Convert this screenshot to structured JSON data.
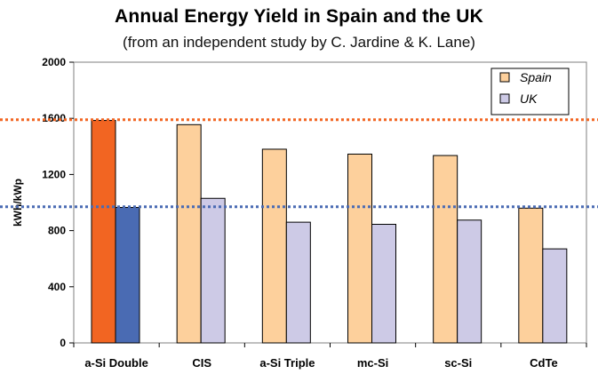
{
  "chart_data": {
    "type": "bar",
    "title": "Annual Energy Yield in Spain and the UK",
    "subtitle": "(from an independent  study by C. Jardine & K. Lane)",
    "xlabel": "",
    "ylabel": "kWh/kWp",
    "ylim": [
      0,
      2000
    ],
    "yticks": [
      "0",
      "400",
      "800",
      "1200",
      "1600",
      "2000"
    ],
    "categories": [
      "a-Si Double",
      "CIS",
      "a-Si Triple",
      "mc-Si",
      "sc-Si",
      "CdTe"
    ],
    "series": [
      {
        "name": "Spain",
        "color": "#fdd09c",
        "values": [
          1585,
          1555,
          1380,
          1345,
          1335,
          960
        ]
      },
      {
        "name": "UK",
        "color": "#cdcae6",
        "values": [
          965,
          1030,
          860,
          845,
          875,
          670
        ]
      }
    ],
    "highlight": {
      "category": "a-Si Double",
      "colors": [
        "#f26522",
        "#4a6bb3"
      ]
    },
    "reference_lines": [
      {
        "value": 1590,
        "color": "#f26522",
        "style": "dotted"
      },
      {
        "value": 970,
        "color": "#4a6bb3",
        "style": "dotted"
      }
    ],
    "legend_position": "top-right",
    "grid": false
  }
}
